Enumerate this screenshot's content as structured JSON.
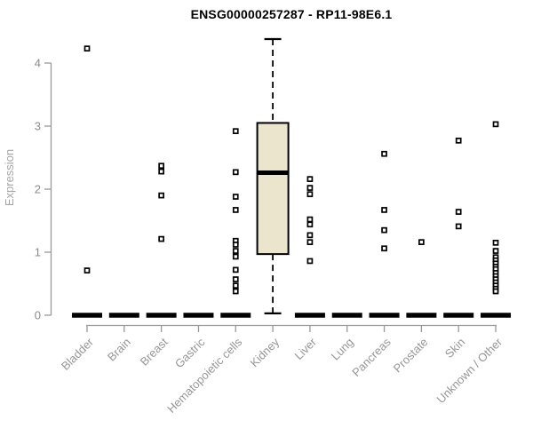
{
  "chart_data": {
    "type": "boxplot",
    "title": "ENSG00000257287 - RP11-98E6.1",
    "ylabel": "Expression",
    "xlabel": "",
    "yticks": [
      0,
      1,
      2,
      3,
      4
    ],
    "ylim": [
      0,
      4.6
    ],
    "grid": false,
    "legend": "none",
    "marker": "open-square",
    "categories": [
      "Bladder",
      "Brain",
      "Breast",
      "Gastric",
      "Hematopoietic cells",
      "Kidney",
      "Liver",
      "Lung",
      "Pancreas",
      "Prostate",
      "Skin",
      "Unknown / Other"
    ],
    "series": [
      {
        "name": "Bladder",
        "median": 0,
        "outliers": [
          4.23,
          0.71
        ]
      },
      {
        "name": "Brain",
        "median": 0,
        "outliers": []
      },
      {
        "name": "Breast",
        "median": 0,
        "outliers": [
          2.37,
          2.28,
          1.9,
          1.21
        ]
      },
      {
        "name": "Gastric",
        "median": 0,
        "outliers": []
      },
      {
        "name": "Hematopoietic cells",
        "median": 0,
        "outliers": [
          2.92,
          2.27,
          1.88,
          1.67,
          1.18,
          1.12,
          1.02,
          0.93,
          0.72,
          0.57,
          0.47,
          0.38
        ]
      },
      {
        "name": "Kidney",
        "box": {
          "whisker_low": 0.03,
          "q1": 0.97,
          "median": 2.26,
          "q3": 3.05,
          "whisker_high": 4.38
        },
        "outliers": []
      },
      {
        "name": "Liver",
        "median": 0,
        "outliers": [
          2.16,
          2.02,
          1.92,
          1.52,
          1.44,
          1.27,
          1.16,
          0.86
        ]
      },
      {
        "name": "Lung",
        "median": 0,
        "outliers": []
      },
      {
        "name": "Pancreas",
        "median": 0,
        "outliers": [
          2.56,
          1.67,
          1.35,
          1.06
        ]
      },
      {
        "name": "Prostate",
        "median": 0,
        "outliers": [
          1.16
        ]
      },
      {
        "name": "Skin",
        "median": 0,
        "outliers": [
          2.77,
          1.64,
          1.41
        ]
      },
      {
        "name": "Unknown / Other",
        "median": 0,
        "outliers": [
          3.03,
          1.15,
          1.02,
          0.92,
          0.87,
          0.82,
          0.77,
          0.73,
          0.67,
          0.62,
          0.57,
          0.52,
          0.47,
          0.42,
          0.38
        ]
      }
    ],
    "colors": {
      "box_fill": "#ECE5CD",
      "box_stroke": "#000000",
      "median": "#000000",
      "zero_bar": "#000000",
      "outlier_stroke": "#000000",
      "outlier_fill": "#ffffff",
      "axis": "#999999",
      "tick_text": "#8c8c8c",
      "category_text": "#969696",
      "ylabel_text": "#a6a6a6",
      "title_text": "#000000"
    }
  }
}
